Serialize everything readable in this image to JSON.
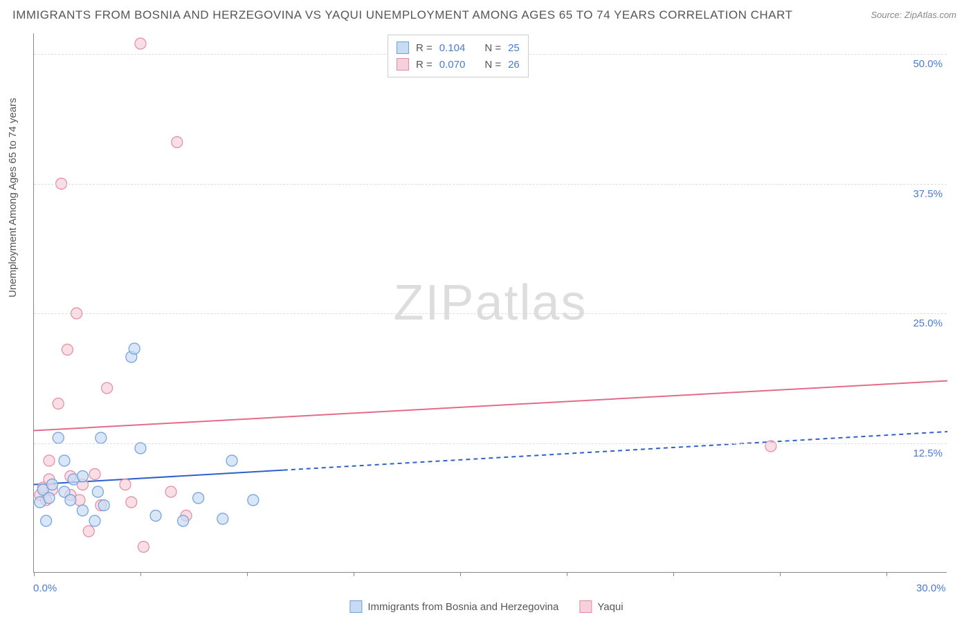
{
  "title": "IMMIGRANTS FROM BOSNIA AND HERZEGOVINA VS YAQUI UNEMPLOYMENT AMONG AGES 65 TO 74 YEARS CORRELATION CHART",
  "source": "Source: ZipAtlas.com",
  "y_axis_label": "Unemployment Among Ages 65 to 74 years",
  "watermark_a": "ZIP",
  "watermark_b": "atlas",
  "chart": {
    "type": "scatter",
    "xlim": [
      0,
      30
    ],
    "ylim": [
      0,
      52
    ],
    "x_tick_labels": {
      "0": "0.0%",
      "30": "30.0%"
    },
    "y_tick_labels": {
      "12.5": "12.5%",
      "25": "25.0%",
      "37.5": "37.5%",
      "50": "50.0%"
    },
    "y_gridlines": [
      12.5,
      25,
      37.5,
      50
    ],
    "x_ticks": [
      0,
      3.5,
      7,
      10.5,
      14,
      17.5,
      21,
      24.5,
      28
    ],
    "background_color": "#ffffff",
    "grid_color": "#dddddd",
    "axis_color": "#888888",
    "label_color": "#4a7bd0",
    "marker_radius": 8,
    "marker_stroke_width": 1.2,
    "line_width": 2
  },
  "series": {
    "blue": {
      "label": "Immigrants from Bosnia and Herzegovina",
      "fill": "#c7dbf3",
      "stroke": "#6b9fe0",
      "fill_opacity": 0.7,
      "line_color": "#2f5fc9",
      "R": "0.104",
      "N": "25",
      "trend": {
        "x1": 0,
        "y1": 8.5,
        "x2": 30,
        "y2": 13.6,
        "solid_until_x": 8.2
      },
      "points": [
        [
          0.2,
          6.8
        ],
        [
          0.3,
          8.0
        ],
        [
          0.4,
          5.0
        ],
        [
          0.5,
          7.2
        ],
        [
          0.6,
          8.5
        ],
        [
          0.8,
          13.0
        ],
        [
          1.0,
          10.8
        ],
        [
          1.0,
          7.8
        ],
        [
          1.2,
          7.0
        ],
        [
          1.3,
          9.0
        ],
        [
          1.6,
          6.0
        ],
        [
          1.6,
          9.3
        ],
        [
          2.0,
          5.0
        ],
        [
          2.1,
          7.8
        ],
        [
          2.2,
          13.0
        ],
        [
          2.3,
          6.5
        ],
        [
          3.2,
          20.8
        ],
        [
          3.3,
          21.6
        ],
        [
          3.5,
          12.0
        ],
        [
          4.0,
          5.5
        ],
        [
          4.9,
          5.0
        ],
        [
          5.4,
          7.2
        ],
        [
          6.2,
          5.2
        ],
        [
          6.5,
          10.8
        ],
        [
          7.2,
          7.0
        ]
      ]
    },
    "pink": {
      "label": "Yaqui",
      "fill": "#f6d0da",
      "stroke": "#e68aa2",
      "fill_opacity": 0.7,
      "line_color": "#e36b88",
      "R": "0.070",
      "N": "26",
      "trend": {
        "x1": 0,
        "y1": 13.7,
        "x2": 30,
        "y2": 18.5,
        "solid_until_x": 30
      },
      "points": [
        [
          0.2,
          7.5
        ],
        [
          0.3,
          8.2
        ],
        [
          0.4,
          7.0
        ],
        [
          0.5,
          9.0
        ],
        [
          0.5,
          10.8
        ],
        [
          0.6,
          8.0
        ],
        [
          0.8,
          16.3
        ],
        [
          0.9,
          37.5
        ],
        [
          1.1,
          21.5
        ],
        [
          1.2,
          7.5
        ],
        [
          1.2,
          9.3
        ],
        [
          1.4,
          25.0
        ],
        [
          1.5,
          7.0
        ],
        [
          1.6,
          8.5
        ],
        [
          1.8,
          4.0
        ],
        [
          2.0,
          9.5
        ],
        [
          2.2,
          6.5
        ],
        [
          2.4,
          17.8
        ],
        [
          3.0,
          8.5
        ],
        [
          3.2,
          6.8
        ],
        [
          3.5,
          51.0
        ],
        [
          3.6,
          2.5
        ],
        [
          4.5,
          7.8
        ],
        [
          4.7,
          41.5
        ],
        [
          5.0,
          5.5
        ],
        [
          24.2,
          12.2
        ]
      ]
    }
  },
  "legend_stats": {
    "r_label": "R",
    "n_label": "N",
    "eq": "="
  }
}
